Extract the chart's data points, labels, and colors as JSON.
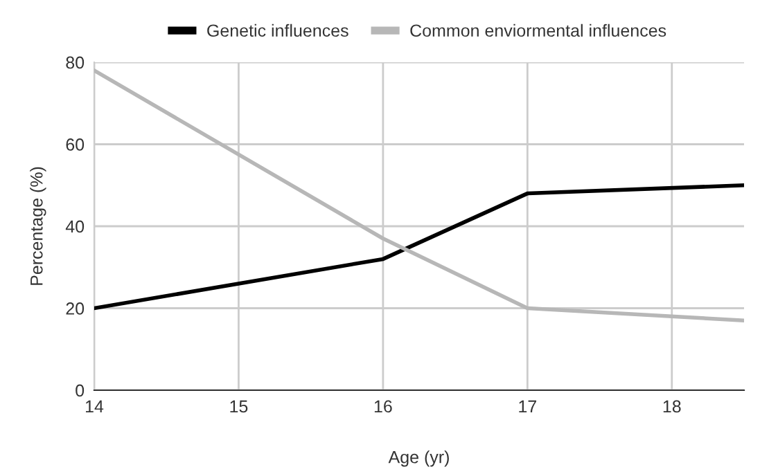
{
  "chart_data": {
    "type": "line",
    "xlabel": "Age (yr)",
    "ylabel": "Percentage (%)",
    "x": [
      14,
      16,
      17,
      18.5
    ],
    "series": [
      {
        "name": "Genetic influences",
        "color": "#000000",
        "values": [
          20,
          32,
          48,
          50
        ]
      },
      {
        "name": "Common enviormental influences",
        "color": "#b7b7b7",
        "values": [
          78,
          37,
          20,
          17
        ]
      }
    ],
    "xlim": [
      14,
      18.5
    ],
    "xticks": [
      14,
      15,
      16,
      17,
      18
    ],
    "ylim": [
      0,
      80
    ],
    "yticks": [
      0,
      20,
      40,
      60,
      80
    ],
    "grid": true,
    "legend": "top",
    "marker": "none",
    "line_style": "solid"
  }
}
